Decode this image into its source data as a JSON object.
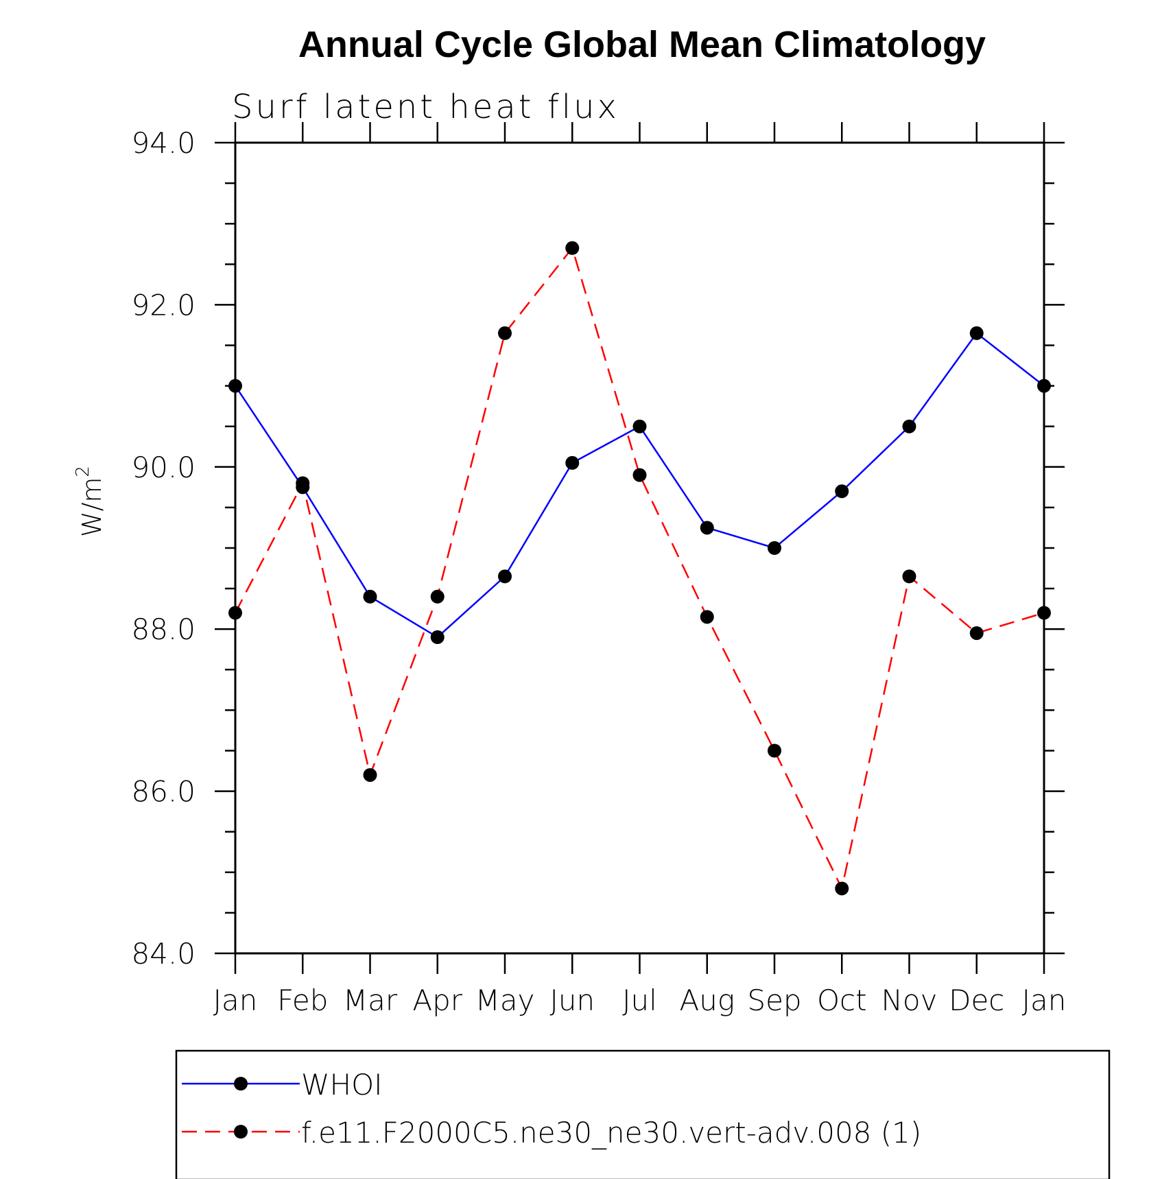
{
  "chart_data": {
    "type": "line",
    "title": "Annual Cycle Global Mean Climatology",
    "subtitle": "Surf latent heat flux",
    "ylabel": "W/m",
    "ylabel_superscript": "2",
    "ylim": [
      84.0,
      94.0
    ],
    "yticks": [
      "84.0",
      "86.0",
      "88.0",
      "90.0",
      "92.0",
      "94.0"
    ],
    "categories": [
      "Jan",
      "Feb",
      "Mar",
      "Apr",
      "May",
      "Jun",
      "Jul",
      "Aug",
      "Sep",
      "Oct",
      "Nov",
      "Dec",
      "Jan"
    ],
    "series": [
      {
        "name": "WHOI",
        "color": "#0000ff",
        "dash": "solid",
        "values": [
          91.0,
          89.75,
          88.4,
          87.9,
          88.65,
          90.05,
          90.5,
          89.25,
          89.0,
          89.7,
          90.5,
          91.65,
          91.0
        ]
      },
      {
        "name": "f.e11.F2000C5.ne30_ne30.vert-adv.008 (1)",
        "color": "#ff0000",
        "dash": "dashed",
        "values": [
          88.2,
          89.8,
          86.2,
          88.4,
          91.65,
          92.7,
          89.9,
          88.15,
          86.5,
          84.8,
          88.65,
          87.95,
          88.2
        ]
      }
    ],
    "legend_position": "bottom",
    "grid": false
  }
}
